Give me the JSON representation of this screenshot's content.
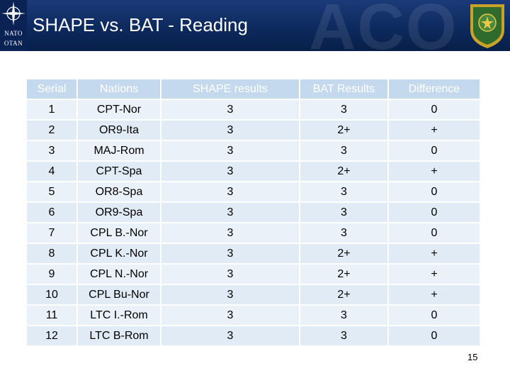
{
  "header": {
    "title": "SHAPE vs. BAT - Reading",
    "logo_top": "NATO",
    "logo_bottom": "OTAN",
    "watermark": "ACO",
    "crest_icon": "allied-command-operations-crest"
  },
  "table": {
    "columns": [
      "Serial",
      "Nations",
      "SHAPE results",
      "BAT Results",
      "Difference"
    ],
    "rows": [
      [
        "1",
        "CPT-Nor",
        "3",
        "3",
        "0"
      ],
      [
        "2",
        "OR9-Ita",
        "3",
        "2+",
        "+"
      ],
      [
        "3",
        "MAJ-Rom",
        "3",
        "3",
        "0"
      ],
      [
        "4",
        "CPT-Spa",
        "3",
        "2+",
        "+"
      ],
      [
        "5",
        "OR8-Spa",
        "3",
        "3",
        "0"
      ],
      [
        "6",
        "OR9-Spa",
        "3",
        "3",
        "0"
      ],
      [
        "7",
        "CPL B.-Nor",
        "3",
        "3",
        "0"
      ],
      [
        "8",
        "CPL K.-Nor",
        "3",
        "2+",
        "+"
      ],
      [
        "9",
        "CPL N.-Nor",
        "3",
        "2+",
        "+"
      ],
      [
        "10",
        "CPL Bu-Nor",
        "3",
        "2+",
        "+"
      ],
      [
        "11",
        "LTC I.-Rom",
        "3",
        "3",
        "0"
      ],
      [
        "12",
        "LTC B-Rom",
        "3",
        "3",
        "0"
      ]
    ]
  },
  "footer": {
    "page_number": "15"
  },
  "colors": {
    "header_bg": "#0d2a5e",
    "table_header_bg": "#c5d9ee",
    "table_row_bg": "#eaf1f8"
  }
}
